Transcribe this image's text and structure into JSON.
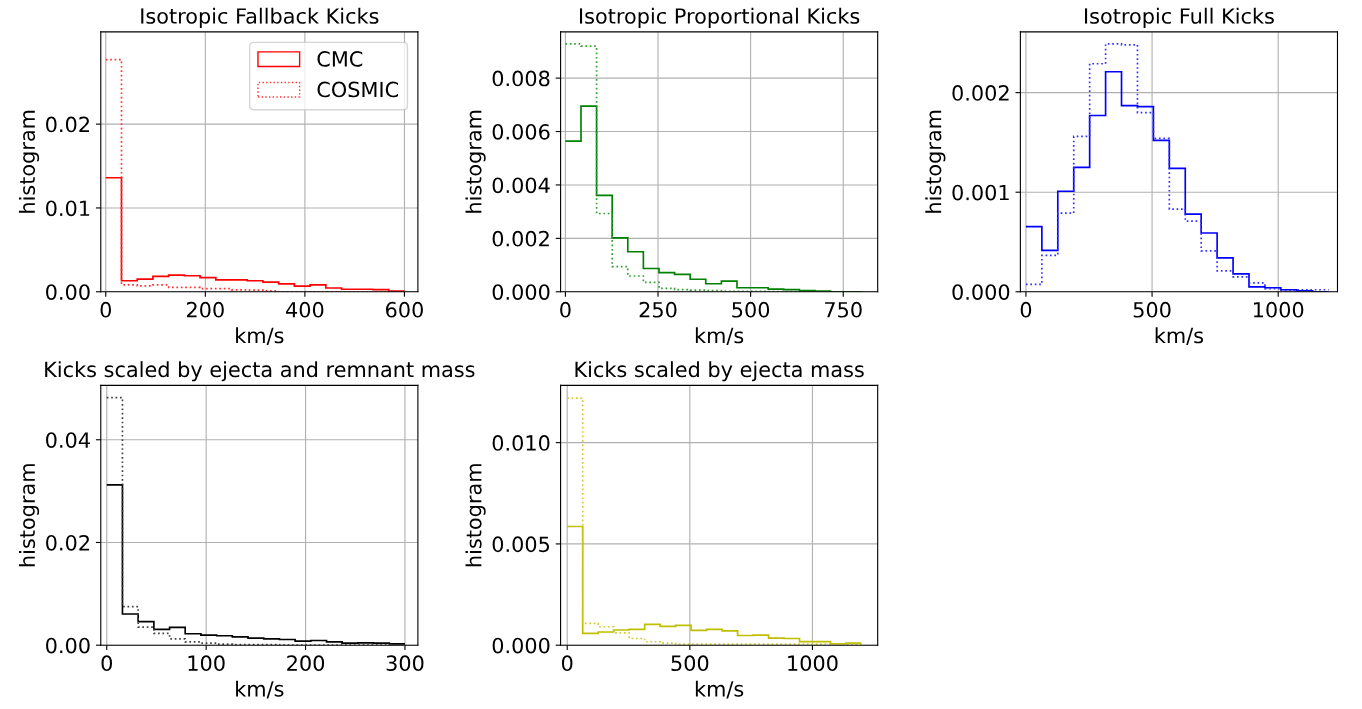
{
  "chart_data": [
    {
      "type": "histogram",
      "title": "Isotropic Fallback Kicks",
      "xlabel": "km/s",
      "ylabel": "histogram",
      "grid": true,
      "legend": "top right",
      "bins": [
        0,
        31.6,
        63.2,
        94.7,
        126.3,
        157.9,
        189.5,
        221.1,
        252.6,
        284.2,
        315.8,
        347.4,
        378.9,
        410.5,
        442.1,
        473.7,
        505.3,
        536.8,
        568.4,
        600
      ],
      "xlim": [
        -10,
        627
      ],
      "xticks": [
        0,
        200,
        400,
        600
      ],
      "ylim": [
        0,
        0.031
      ],
      "yticks": [
        {
          "value": 0,
          "label": "0.00"
        },
        {
          "value": 0.01,
          "label": "0.01"
        },
        {
          "value": 0.02,
          "label": "0.02"
        }
      ],
      "series": [
        {
          "name": "CMC",
          "color": "#ff0000",
          "line_style": "solid",
          "values": [
            0.0136,
            0.00131,
            0.0015,
            0.00184,
            0.00198,
            0.00191,
            0.00169,
            0.00142,
            0.00142,
            0.00131,
            0.00116,
            0.00094,
            0.00067,
            0.00082,
            0.00045,
            0.0003,
            0.0003,
            0.00026,
            7e-05
          ]
        },
        {
          "name": "COSMIC",
          "color": "#ff3030",
          "line_style": "dotted",
          "values": [
            0.0277,
            0.00082,
            0.00071,
            0.00082,
            0.00052,
            0.00052,
            0.00037,
            0.00037,
            0.00022,
            0.00019,
            0.0001,
            0,
            0,
            0,
            0,
            0,
            0,
            0,
            0
          ]
        }
      ]
    },
    {
      "type": "histogram",
      "title": "Isotropic Proportional Kicks",
      "xlabel": "km/s",
      "ylabel": "histogram",
      "grid": true,
      "bins": [
        0,
        42.1,
        84.2,
        126.3,
        168.4,
        210.5,
        252.6,
        294.7,
        336.8,
        378.9,
        421.1,
        463.2,
        505.3,
        547.4,
        589.5,
        631.6,
        673.7,
        715.8,
        757.9,
        800
      ],
      "xlim": [
        -13,
        843
      ],
      "xticks": [
        0,
        250,
        500,
        750
      ],
      "ylim": [
        0,
        0.00973
      ],
      "yticks": [
        {
          "value": 0,
          "label": "0.000"
        },
        {
          "value": 0.002,
          "label": "0.002"
        },
        {
          "value": 0.004,
          "label": "0.004"
        },
        {
          "value": 0.006,
          "label": "0.006"
        },
        {
          "value": 0.008,
          "label": "0.008"
        }
      ],
      "series": [
        {
          "color": "#008000",
          "line_style": "solid",
          "values": [
            0.00564,
            0.00695,
            0.00361,
            0.00202,
            0.0015,
            0.00087,
            0.00072,
            0.00065,
            0.00047,
            0.0003,
            0.0004,
            0.00015,
            0.00015,
            0.0001,
            8e-05,
            4e-05,
            3e-05,
            0,
            0
          ]
        },
        {
          "color": "#30a030",
          "line_style": "dotted",
          "values": [
            0.00928,
            0.0092,
            0.00293,
            0.00094,
            0.00059,
            0.00035,
            0.00013,
            8e-05,
            6e-05,
            4e-05,
            2e-05,
            2e-05,
            2e-05,
            1e-05,
            1e-05,
            0,
            0,
            0,
            0
          ]
        }
      ]
    },
    {
      "type": "histogram",
      "title": "Isotropic Full Kicks",
      "xlabel": "km/s",
      "ylabel": "histogram",
      "grid": true,
      "bins": [
        0,
        63.2,
        126.3,
        189.5,
        252.6,
        315.8,
        378.9,
        442.1,
        505.3,
        568.4,
        631.6,
        694.7,
        757.9,
        821.1,
        884.2,
        947.4,
        1010.5,
        1073.7,
        1136.8,
        1200
      ],
      "xlim": [
        -22,
        1235
      ],
      "xticks": [
        0,
        500,
        1000
      ],
      "ylim": [
        0,
        0.00261
      ],
      "yticks": [
        {
          "value": 0,
          "label": "0.000"
        },
        {
          "value": 0.001,
          "label": "0.001"
        },
        {
          "value": 0.002,
          "label": "0.002"
        }
      ],
      "series": [
        {
          "color": "#0000ff",
          "line_style": "solid",
          "values": [
            0.000655,
            0.000416,
            0.00101,
            0.00125,
            0.00177,
            0.00221,
            0.00187,
            0.00186,
            0.00152,
            0.00124,
            0.00078,
            0.00059,
            0.00034,
            0.00018,
            5e-05,
            4e-05,
            2e-05,
            1e-05,
            0
          ]
        },
        {
          "color": "#3030ff",
          "line_style": "dotted",
          "values": [
            7.4e-05,
            0.000365,
            0.00079,
            0.00156,
            0.00229,
            0.00249,
            0.00248,
            0.0018,
            0.00154,
            0.00083,
            0.00071,
            0.00041,
            0.00021,
            0.00015,
            9e-05,
            3e-05,
            1e-05,
            2e-05,
            2e-05
          ]
        }
      ]
    },
    {
      "type": "histogram",
      "title": "Kicks scaled by ejecta and remnant mass",
      "xlabel": "km/s",
      "ylabel": "histogram",
      "grid": true,
      "bins": [
        0,
        15.8,
        31.6,
        47.4,
        63.2,
        78.9,
        94.7,
        110.5,
        126.3,
        142.1,
        157.9,
        173.7,
        189.5,
        205.3,
        221.1,
        236.8,
        252.6,
        268.4,
        284.2,
        300
      ],
      "xlim": [
        -6,
        313
      ],
      "xticks": [
        0,
        100,
        200,
        300
      ],
      "ylim": [
        0,
        0.0506
      ],
      "yticks": [
        {
          "value": 0,
          "label": "0.00"
        },
        {
          "value": 0.02,
          "label": "0.02"
        },
        {
          "value": 0.04,
          "label": "0.04"
        }
      ],
      "series": [
        {
          "color": "#000000",
          "line_style": "solid",
          "values": [
            0.0312,
            0.00608,
            0.00458,
            0.00307,
            0.00346,
            0.00222,
            0.00196,
            0.00183,
            0.00163,
            0.00137,
            0.00124,
            0.00111,
            0.00078,
            0.00092,
            0.00065,
            0.00039,
            0.00046,
            0.00039,
            0.00026
          ]
        },
        {
          "color": "#404040",
          "line_style": "dotted",
          "values": [
            0.0482,
            0.00752,
            0.00353,
            0.00229,
            0.00124,
            0.00065,
            0.00039,
            0.0002,
            0.0001,
            0.0001,
            0.0001,
            0,
            0,
            0,
            0,
            0,
            0,
            0,
            0
          ]
        }
      ]
    },
    {
      "type": "histogram",
      "title": "Kicks scaled by ejecta mass",
      "xlabel": "km/s",
      "ylabel": "histogram",
      "grid": true,
      "bins": [
        0,
        63.2,
        126.3,
        189.5,
        252.6,
        315.8,
        378.9,
        442.1,
        505.3,
        568.4,
        631.6,
        694.7,
        757.9,
        821.1,
        884.2,
        947.4,
        1010.5,
        1073.7,
        1136.8,
        1200
      ],
      "xlim": [
        -27,
        1266
      ],
      "xticks": [
        0,
        500,
        1000
      ],
      "ylim": [
        0,
        0.01283
      ],
      "yticks": [
        {
          "value": 0,
          "label": "0.000"
        },
        {
          "value": 0.005,
          "label": "0.005"
        },
        {
          "value": 0.01,
          "label": "0.010"
        }
      ],
      "series": [
        {
          "color": "#bfbf00",
          "line_style": "solid",
          "values": [
            0.00586,
            0.00058,
            0.00065,
            0.00075,
            0.00078,
            0.00103,
            0.00093,
            0.00098,
            0.00073,
            0.00078,
            0.00071,
            0.00048,
            0.0005,
            0.00035,
            0.00033,
            0.00018,
            0.00018,
            7e-05,
            0.0001
          ]
        },
        {
          "color": "#cccc30",
          "line_style": "dotted",
          "values": [
            0.0122,
            0.00108,
            0.00091,
            0.00061,
            0.00033,
            0.00017,
            0.0001,
            5e-05,
            5e-05,
            5e-05,
            5e-05,
            5e-05,
            5e-05,
            5e-05,
            5e-05,
            5e-05,
            5e-05,
            5e-05,
            5e-05
          ]
        }
      ]
    }
  ]
}
